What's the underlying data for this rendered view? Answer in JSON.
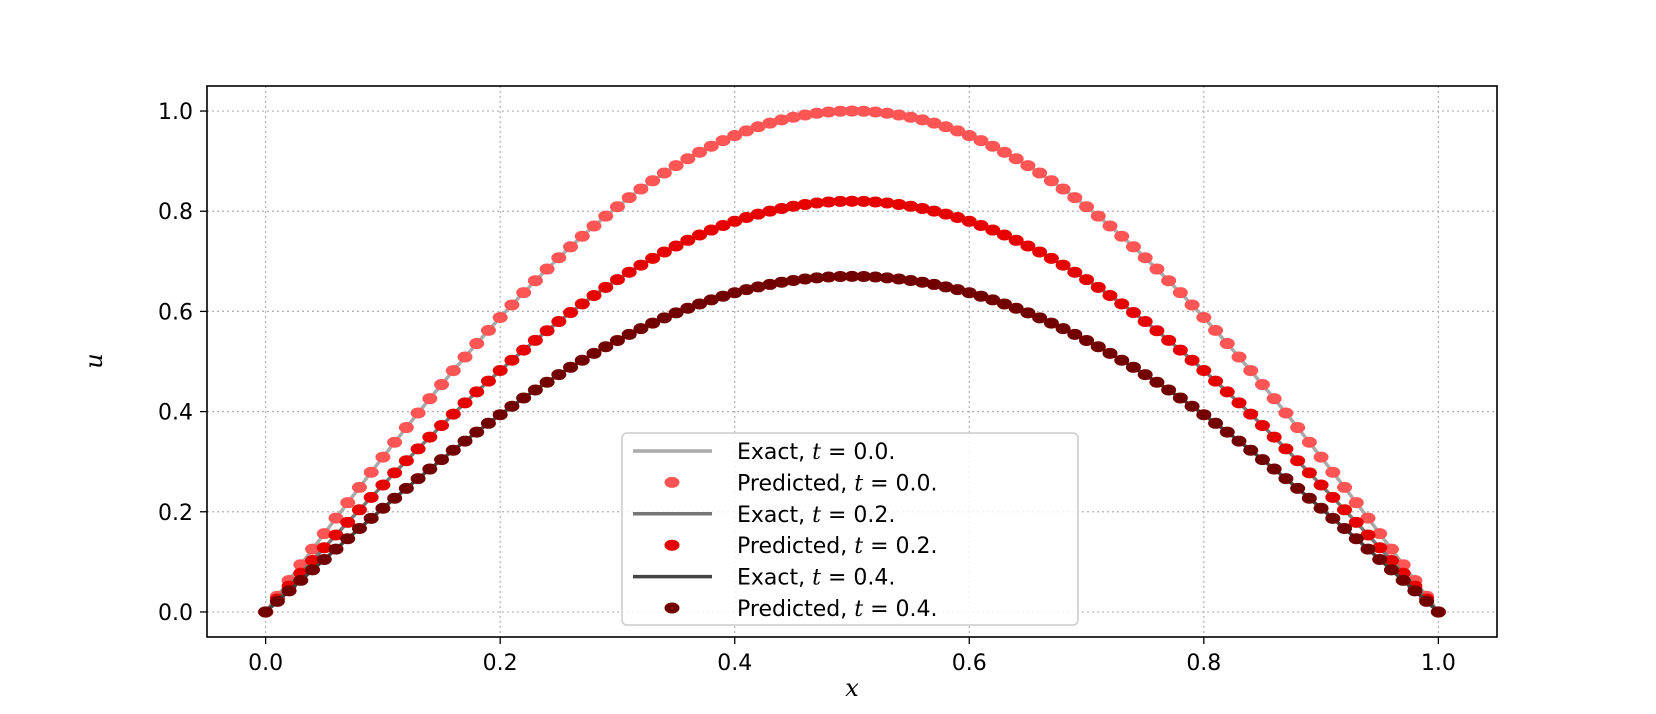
{
  "chart_data": {
    "type": "line",
    "xlabel": "x",
    "ylabel": "u",
    "xlim": [
      -0.05,
      1.05
    ],
    "ylim": [
      -0.05,
      1.05
    ],
    "xticks": [
      "0.0",
      "0.2",
      "0.4",
      "0.6",
      "0.8",
      "1.0"
    ],
    "yticks": [
      "0.0",
      "0.2",
      "0.4",
      "0.6",
      "0.8",
      "1.0"
    ],
    "grid": true,
    "legend_position": "lower center",
    "n_points": 101,
    "series": [
      {
        "name": "Exact, t = 0.0.",
        "label_prefix": "Exact,",
        "t": "t",
        "eq": "= 0.0.",
        "kind": "line",
        "color": "#aaaaaa",
        "amplitude": 1.0
      },
      {
        "name": "Predicted, t = 0.0.",
        "label_prefix": "Predicted,",
        "t": "t",
        "eq": "= 0.0.",
        "kind": "markers",
        "color": "#ff5555",
        "amplitude": 1.0
      },
      {
        "name": "Exact, t = 0.2.",
        "label_prefix": "Exact,",
        "t": "t",
        "eq": "= 0.2.",
        "kind": "line",
        "color": "#777777",
        "amplitude": 0.82
      },
      {
        "name": "Predicted, t = 0.2.",
        "label_prefix": "Predicted,",
        "t": "t",
        "eq": "= 0.2.",
        "kind": "markers",
        "color": "#e60000",
        "amplitude": 0.82
      },
      {
        "name": "Exact, t = 0.4.",
        "label_prefix": "Exact,",
        "t": "t",
        "eq": "= 0.4.",
        "kind": "line",
        "color": "#444444",
        "amplitude": 0.67
      },
      {
        "name": "Predicted, t = 0.4.",
        "label_prefix": "Predicted,",
        "t": "t",
        "eq": "= 0.4.",
        "kind": "markers",
        "color": "#730000",
        "amplitude": 0.67
      }
    ]
  }
}
